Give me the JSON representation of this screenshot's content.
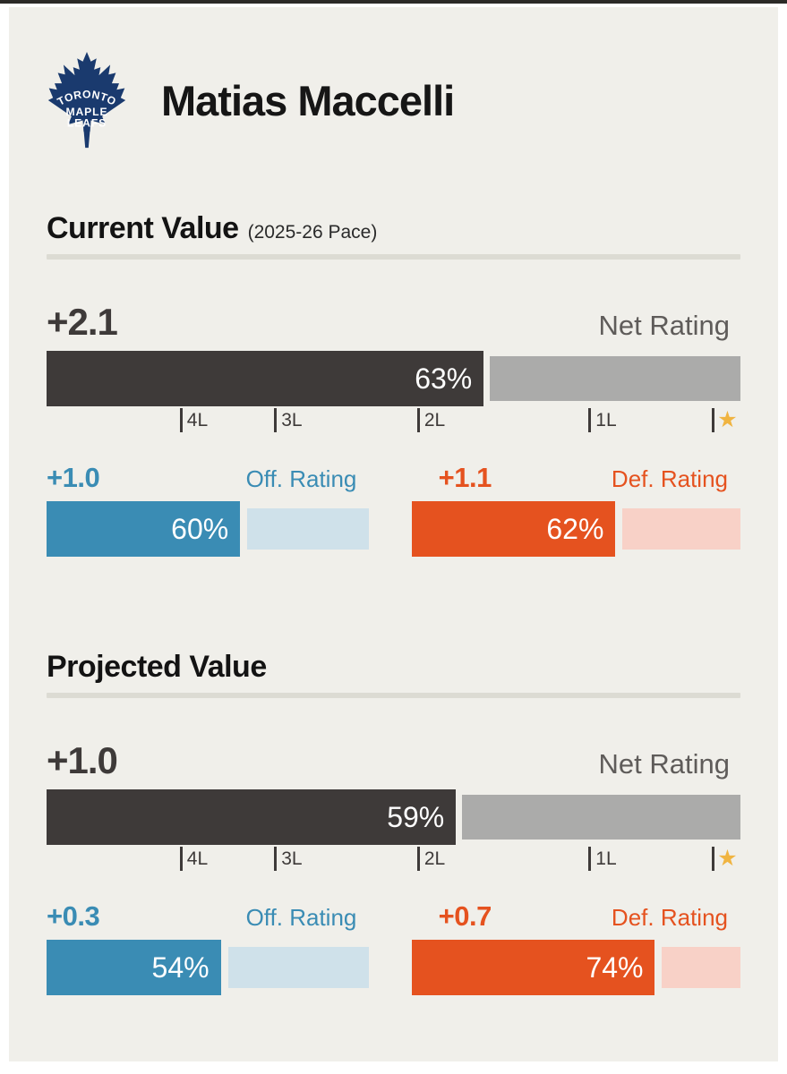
{
  "team": {
    "name": "Toronto Maple Leafs",
    "wordmark": [
      "TORONTO",
      "MAPLE",
      "LEAFS"
    ],
    "logo_color": "#1a3a6e"
  },
  "player": {
    "name": "Matias Maccelli"
  },
  "colors": {
    "card_bg": "#f0efea",
    "net_dark": "#3e3a39",
    "net_rest_gray": "#ababaa",
    "offense_teal": "#3a8cb4",
    "offense_light": "#cfe1ea",
    "defense_orange": "#e5521f",
    "defense_light": "#f8d1c7",
    "star_gold": "#f0b441",
    "divider": "#dcdbd3"
  },
  "chart_data": {
    "type": "bar",
    "unit": "percentile (0-100), bar fill = percentile",
    "axis": {
      "ticks": [
        {
          "label": "4L",
          "pos": 19.2
        },
        {
          "label": "3L",
          "pos": 32.8
        },
        {
          "label": "2L",
          "pos": 53.4
        },
        {
          "label": "1L",
          "pos": 78.1
        }
      ],
      "star_pos": 95.9,
      "star_char": "★"
    },
    "sections": [
      {
        "title": "Current Value",
        "subtitle": "(2025-26 Pace)",
        "net": {
          "label": "Net Rating",
          "rating": "+2.1",
          "percentile": 63,
          "percent_text": "63%"
        },
        "off": {
          "label": "Off. Rating",
          "rating": "+1.0",
          "percentile": 60,
          "percent_text": "60%"
        },
        "def": {
          "label": "Def. Rating",
          "rating": "+1.1",
          "percentile": 62,
          "percent_text": "62%"
        }
      },
      {
        "title": "Projected Value",
        "subtitle": "",
        "net": {
          "label": "Net Rating",
          "rating": "+1.0",
          "percentile": 59,
          "percent_text": "59%"
        },
        "off": {
          "label": "Off. Rating",
          "rating": "+0.3",
          "percentile": 54,
          "percent_text": "54%"
        },
        "def": {
          "label": "Def. Rating",
          "rating": "+0.7",
          "percentile": 74,
          "percent_text": "74%"
        }
      }
    ]
  }
}
